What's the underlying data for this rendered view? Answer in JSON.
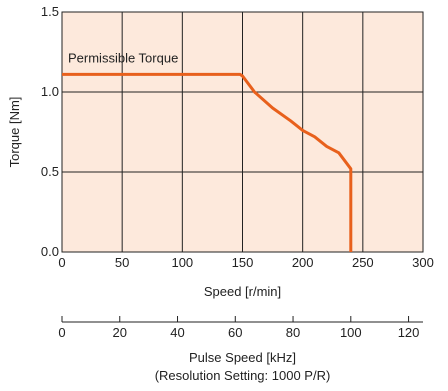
{
  "chart_data": {
    "type": "line",
    "title": "",
    "xlabel": "Speed [r/min]",
    "ylabel": "Torque [Nm]",
    "xlim": [
      0,
      300
    ],
    "ylim": [
      0,
      1.5
    ],
    "x_ticks": [
      "0",
      "50",
      "100",
      "150",
      "200",
      "250",
      "300"
    ],
    "y_ticks": [
      "0.0",
      "0.5",
      "1.0",
      "1.5"
    ],
    "grid": true,
    "plot_background": "#fde9dc",
    "series": [
      {
        "color": "#e8601c",
        "x": [
          0,
          148,
          150,
          160,
          175,
          190,
          200,
          210,
          220,
          230,
          240,
          240
        ],
        "y": [
          1.11,
          1.11,
          1.1,
          1.0,
          0.9,
          0.82,
          0.76,
          0.72,
          0.66,
          0.62,
          0.52,
          0.0
        ]
      }
    ],
    "annotations": [
      {
        "text": "Permissible Torque"
      }
    ],
    "secondary_x_axis": {
      "xlabel": "Pulse Speed [kHz]",
      "note": "(Resolution Setting: 1000 P/R)",
      "xlim": [
        0,
        125
      ],
      "x_ticks": [
        "0",
        "20",
        "40",
        "60",
        "80",
        "100",
        "120"
      ]
    }
  }
}
